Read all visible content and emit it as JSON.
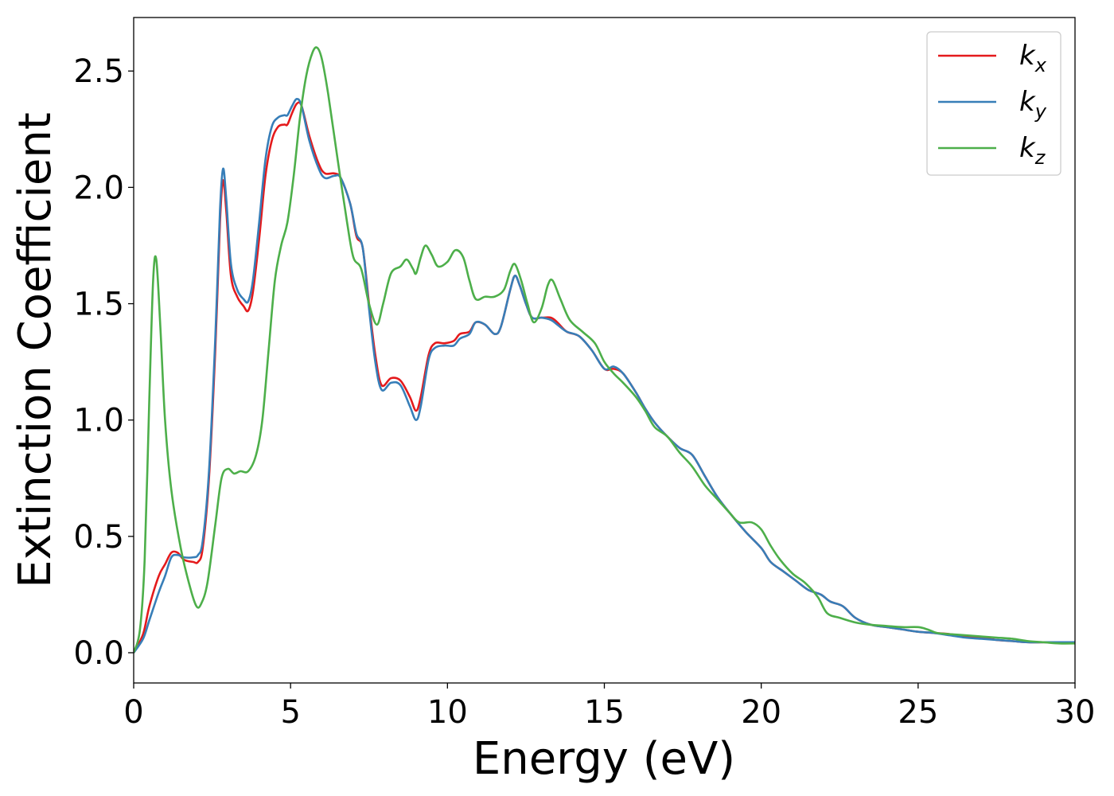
{
  "chart_data": {
    "type": "line",
    "title": "",
    "xlabel": "Energy (eV)",
    "ylabel": "Extinction Coefficient",
    "xlim": [
      0,
      30
    ],
    "ylim": [
      -0.13,
      2.73
    ],
    "xticks": [
      0,
      5,
      10,
      15,
      20,
      25,
      30
    ],
    "yticks": [
      0.0,
      0.5,
      1.0,
      1.5,
      2.0,
      2.5
    ],
    "xtick_labels": [
      "0",
      "5",
      "10",
      "15",
      "20",
      "25",
      "30"
    ],
    "ytick_labels": [
      "0.0",
      "0.5",
      "1.0",
      "1.5",
      "2.0",
      "2.5"
    ],
    "grid": false,
    "legend_position": "top-right",
    "series": [
      {
        "name": "k_x",
        "label_main": "k",
        "label_sub": "x",
        "color": "#e41a1c",
        "points": [
          [
            0,
            0
          ],
          [
            0.3,
            0.08
          ],
          [
            0.5,
            0.2
          ],
          [
            0.8,
            0.33
          ],
          [
            1.0,
            0.38
          ],
          [
            1.2,
            0.43
          ],
          [
            1.4,
            0.43
          ],
          [
            1.6,
            0.4
          ],
          [
            1.9,
            0.39
          ],
          [
            2.05,
            0.39
          ],
          [
            2.2,
            0.45
          ],
          [
            2.4,
            0.75
          ],
          [
            2.6,
            1.3
          ],
          [
            2.75,
            1.85
          ],
          [
            2.85,
            2.03
          ],
          [
            2.95,
            1.9
          ],
          [
            3.1,
            1.62
          ],
          [
            3.3,
            1.53
          ],
          [
            3.5,
            1.49
          ],
          [
            3.65,
            1.47
          ],
          [
            3.8,
            1.55
          ],
          [
            4.0,
            1.78
          ],
          [
            4.2,
            2.05
          ],
          [
            4.4,
            2.2
          ],
          [
            4.6,
            2.26
          ],
          [
            4.8,
            2.27
          ],
          [
            4.9,
            2.27
          ],
          [
            5.05,
            2.32
          ],
          [
            5.2,
            2.36
          ],
          [
            5.35,
            2.35
          ],
          [
            5.6,
            2.22
          ],
          [
            5.9,
            2.1
          ],
          [
            6.1,
            2.06
          ],
          [
            6.4,
            2.06
          ],
          [
            6.6,
            2.04
          ],
          [
            6.9,
            1.93
          ],
          [
            7.1,
            1.79
          ],
          [
            7.3,
            1.74
          ],
          [
            7.5,
            1.5
          ],
          [
            7.7,
            1.28
          ],
          [
            7.9,
            1.15
          ],
          [
            8.2,
            1.18
          ],
          [
            8.5,
            1.17
          ],
          [
            8.8,
            1.1
          ],
          [
            9.0,
            1.04
          ],
          [
            9.15,
            1.1
          ],
          [
            9.4,
            1.28
          ],
          [
            9.6,
            1.33
          ],
          [
            9.9,
            1.33
          ],
          [
            10.2,
            1.34
          ],
          [
            10.4,
            1.37
          ],
          [
            10.7,
            1.38
          ],
          [
            10.9,
            1.42
          ],
          [
            11.2,
            1.41
          ],
          [
            11.5,
            1.37
          ],
          [
            11.7,
            1.4
          ],
          [
            12.0,
            1.56
          ],
          [
            12.15,
            1.62
          ],
          [
            12.3,
            1.58
          ],
          [
            12.5,
            1.5
          ],
          [
            12.7,
            1.44
          ],
          [
            13.0,
            1.44
          ],
          [
            13.3,
            1.44
          ],
          [
            13.5,
            1.42
          ],
          [
            13.8,
            1.38
          ],
          [
            14.2,
            1.36
          ],
          [
            14.6,
            1.3
          ],
          [
            15.0,
            1.22
          ],
          [
            15.3,
            1.22
          ],
          [
            15.6,
            1.2
          ],
          [
            16.0,
            1.12
          ],
          [
            16.3,
            1.05
          ],
          [
            16.6,
            0.99
          ],
          [
            17.0,
            0.93
          ],
          [
            17.4,
            0.88
          ],
          [
            17.8,
            0.85
          ],
          [
            18.2,
            0.76
          ],
          [
            18.6,
            0.67
          ],
          [
            19.0,
            0.6
          ],
          [
            19.5,
            0.52
          ],
          [
            20.0,
            0.45
          ],
          [
            20.3,
            0.39
          ],
          [
            20.7,
            0.35
          ],
          [
            21.1,
            0.31
          ],
          [
            21.5,
            0.27
          ],
          [
            21.9,
            0.25
          ],
          [
            22.2,
            0.22
          ],
          [
            22.6,
            0.2
          ],
          [
            23.0,
            0.15
          ],
          [
            23.5,
            0.12
          ],
          [
            24.0,
            0.11
          ],
          [
            24.5,
            0.1
          ],
          [
            25.0,
            0.09
          ],
          [
            25.5,
            0.085
          ],
          [
            26.0,
            0.08
          ],
          [
            26.5,
            0.07
          ],
          [
            27.0,
            0.065
          ],
          [
            27.5,
            0.055
          ],
          [
            28.0,
            0.05
          ],
          [
            28.5,
            0.045
          ],
          [
            29.0,
            0.045
          ],
          [
            29.5,
            0.045
          ],
          [
            30.0,
            0.045
          ]
        ]
      },
      {
        "name": "k_y",
        "label_main": "k",
        "label_sub": "y",
        "color": "#377eb8",
        "points": [
          [
            0,
            0
          ],
          [
            0.3,
            0.06
          ],
          [
            0.5,
            0.14
          ],
          [
            0.8,
            0.26
          ],
          [
            1.0,
            0.33
          ],
          [
            1.2,
            0.41
          ],
          [
            1.4,
            0.42
          ],
          [
            1.6,
            0.41
          ],
          [
            1.9,
            0.41
          ],
          [
            2.05,
            0.42
          ],
          [
            2.2,
            0.48
          ],
          [
            2.4,
            0.78
          ],
          [
            2.6,
            1.35
          ],
          [
            2.75,
            1.9
          ],
          [
            2.85,
            2.08
          ],
          [
            2.95,
            1.95
          ],
          [
            3.1,
            1.67
          ],
          [
            3.3,
            1.56
          ],
          [
            3.5,
            1.52
          ],
          [
            3.65,
            1.51
          ],
          [
            3.8,
            1.6
          ],
          [
            4.0,
            1.85
          ],
          [
            4.2,
            2.12
          ],
          [
            4.4,
            2.26
          ],
          [
            4.6,
            2.3
          ],
          [
            4.8,
            2.31
          ],
          [
            4.9,
            2.31
          ],
          [
            5.05,
            2.35
          ],
          [
            5.2,
            2.38
          ],
          [
            5.35,
            2.35
          ],
          [
            5.6,
            2.2
          ],
          [
            5.9,
            2.08
          ],
          [
            6.1,
            2.04
          ],
          [
            6.4,
            2.05
          ],
          [
            6.6,
            2.04
          ],
          [
            6.9,
            1.93
          ],
          [
            7.1,
            1.8
          ],
          [
            7.3,
            1.74
          ],
          [
            7.5,
            1.48
          ],
          [
            7.7,
            1.25
          ],
          [
            7.9,
            1.13
          ],
          [
            8.2,
            1.16
          ],
          [
            8.5,
            1.15
          ],
          [
            8.8,
            1.06
          ],
          [
            9.0,
            1.0
          ],
          [
            9.15,
            1.06
          ],
          [
            9.4,
            1.26
          ],
          [
            9.6,
            1.31
          ],
          [
            9.9,
            1.32
          ],
          [
            10.2,
            1.32
          ],
          [
            10.4,
            1.35
          ],
          [
            10.7,
            1.37
          ],
          [
            10.9,
            1.42
          ],
          [
            11.2,
            1.41
          ],
          [
            11.5,
            1.37
          ],
          [
            11.7,
            1.4
          ],
          [
            12.0,
            1.56
          ],
          [
            12.15,
            1.62
          ],
          [
            12.3,
            1.58
          ],
          [
            12.5,
            1.5
          ],
          [
            12.7,
            1.44
          ],
          [
            13.0,
            1.44
          ],
          [
            13.3,
            1.43
          ],
          [
            13.5,
            1.41
          ],
          [
            13.8,
            1.38
          ],
          [
            14.2,
            1.36
          ],
          [
            14.6,
            1.3
          ],
          [
            15.0,
            1.22
          ],
          [
            15.3,
            1.23
          ],
          [
            15.6,
            1.2
          ],
          [
            16.0,
            1.12
          ],
          [
            16.3,
            1.05
          ],
          [
            16.6,
            0.99
          ],
          [
            17.0,
            0.93
          ],
          [
            17.4,
            0.88
          ],
          [
            17.8,
            0.85
          ],
          [
            18.2,
            0.76
          ],
          [
            18.6,
            0.67
          ],
          [
            19.0,
            0.6
          ],
          [
            19.5,
            0.52
          ],
          [
            20.0,
            0.45
          ],
          [
            20.3,
            0.39
          ],
          [
            20.7,
            0.35
          ],
          [
            21.1,
            0.31
          ],
          [
            21.5,
            0.27
          ],
          [
            21.9,
            0.25
          ],
          [
            22.2,
            0.22
          ],
          [
            22.6,
            0.2
          ],
          [
            23.0,
            0.15
          ],
          [
            23.5,
            0.12
          ],
          [
            24.0,
            0.11
          ],
          [
            24.5,
            0.1
          ],
          [
            25.0,
            0.09
          ],
          [
            25.5,
            0.085
          ],
          [
            26.0,
            0.075
          ],
          [
            26.5,
            0.065
          ],
          [
            27.0,
            0.06
          ],
          [
            27.5,
            0.055
          ],
          [
            28.0,
            0.05
          ],
          [
            28.5,
            0.045
          ],
          [
            29.0,
            0.045
          ],
          [
            29.5,
            0.045
          ],
          [
            30.0,
            0.045
          ]
        ]
      },
      {
        "name": "k_z",
        "label_main": "k",
        "label_sub": "z",
        "color": "#4daf4a",
        "points": [
          [
            0,
            0
          ],
          [
            0.2,
            0.1
          ],
          [
            0.35,
            0.4
          ],
          [
            0.5,
            1.1
          ],
          [
            0.62,
            1.6
          ],
          [
            0.72,
            1.69
          ],
          [
            0.85,
            1.4
          ],
          [
            1.0,
            1.0
          ],
          [
            1.2,
            0.7
          ],
          [
            1.5,
            0.45
          ],
          [
            1.8,
            0.28
          ],
          [
            2.0,
            0.2
          ],
          [
            2.15,
            0.21
          ],
          [
            2.35,
            0.3
          ],
          [
            2.6,
            0.55
          ],
          [
            2.8,
            0.75
          ],
          [
            3.0,
            0.79
          ],
          [
            3.2,
            0.77
          ],
          [
            3.4,
            0.78
          ],
          [
            3.65,
            0.78
          ],
          [
            3.9,
            0.85
          ],
          [
            4.1,
            1.0
          ],
          [
            4.3,
            1.3
          ],
          [
            4.5,
            1.6
          ],
          [
            4.7,
            1.75
          ],
          [
            4.9,
            1.85
          ],
          [
            5.1,
            2.05
          ],
          [
            5.3,
            2.3
          ],
          [
            5.5,
            2.48
          ],
          [
            5.7,
            2.58
          ],
          [
            5.85,
            2.6
          ],
          [
            6.0,
            2.55
          ],
          [
            6.2,
            2.4
          ],
          [
            6.5,
            2.12
          ],
          [
            6.8,
            1.85
          ],
          [
            7.0,
            1.7
          ],
          [
            7.25,
            1.65
          ],
          [
            7.5,
            1.5
          ],
          [
            7.75,
            1.41
          ],
          [
            7.95,
            1.5
          ],
          [
            8.2,
            1.63
          ],
          [
            8.5,
            1.66
          ],
          [
            8.7,
            1.69
          ],
          [
            8.9,
            1.65
          ],
          [
            9.0,
            1.63
          ],
          [
            9.15,
            1.7
          ],
          [
            9.3,
            1.75
          ],
          [
            9.5,
            1.71
          ],
          [
            9.7,
            1.66
          ],
          [
            10.0,
            1.68
          ],
          [
            10.25,
            1.73
          ],
          [
            10.5,
            1.7
          ],
          [
            10.7,
            1.6
          ],
          [
            10.9,
            1.52
          ],
          [
            11.2,
            1.53
          ],
          [
            11.5,
            1.53
          ],
          [
            11.8,
            1.56
          ],
          [
            12.0,
            1.64
          ],
          [
            12.15,
            1.67
          ],
          [
            12.35,
            1.6
          ],
          [
            12.55,
            1.5
          ],
          [
            12.75,
            1.42
          ],
          [
            13.0,
            1.48
          ],
          [
            13.2,
            1.58
          ],
          [
            13.35,
            1.6
          ],
          [
            13.6,
            1.52
          ],
          [
            13.9,
            1.43
          ],
          [
            14.3,
            1.38
          ],
          [
            14.7,
            1.33
          ],
          [
            15.0,
            1.25
          ],
          [
            15.3,
            1.2
          ],
          [
            15.6,
            1.16
          ],
          [
            16.0,
            1.1
          ],
          [
            16.3,
            1.04
          ],
          [
            16.6,
            0.97
          ],
          [
            17.0,
            0.93
          ],
          [
            17.4,
            0.86
          ],
          [
            17.8,
            0.8
          ],
          [
            18.2,
            0.72
          ],
          [
            18.6,
            0.66
          ],
          [
            19.0,
            0.6
          ],
          [
            19.3,
            0.56
          ],
          [
            19.7,
            0.56
          ],
          [
            20.0,
            0.53
          ],
          [
            20.3,
            0.46
          ],
          [
            20.6,
            0.4
          ],
          [
            21.0,
            0.34
          ],
          [
            21.4,
            0.3
          ],
          [
            21.8,
            0.24
          ],
          [
            22.1,
            0.17
          ],
          [
            22.5,
            0.15
          ],
          [
            23.0,
            0.13
          ],
          [
            23.5,
            0.12
          ],
          [
            24.0,
            0.115
          ],
          [
            24.5,
            0.11
          ],
          [
            25.0,
            0.11
          ],
          [
            25.3,
            0.1
          ],
          [
            25.6,
            0.085
          ],
          [
            26.0,
            0.08
          ],
          [
            26.5,
            0.075
          ],
          [
            27.0,
            0.07
          ],
          [
            27.5,
            0.065
          ],
          [
            28.0,
            0.06
          ],
          [
            28.5,
            0.05
          ],
          [
            29.0,
            0.045
          ],
          [
            29.5,
            0.04
          ],
          [
            30.0,
            0.04
          ]
        ]
      }
    ]
  }
}
